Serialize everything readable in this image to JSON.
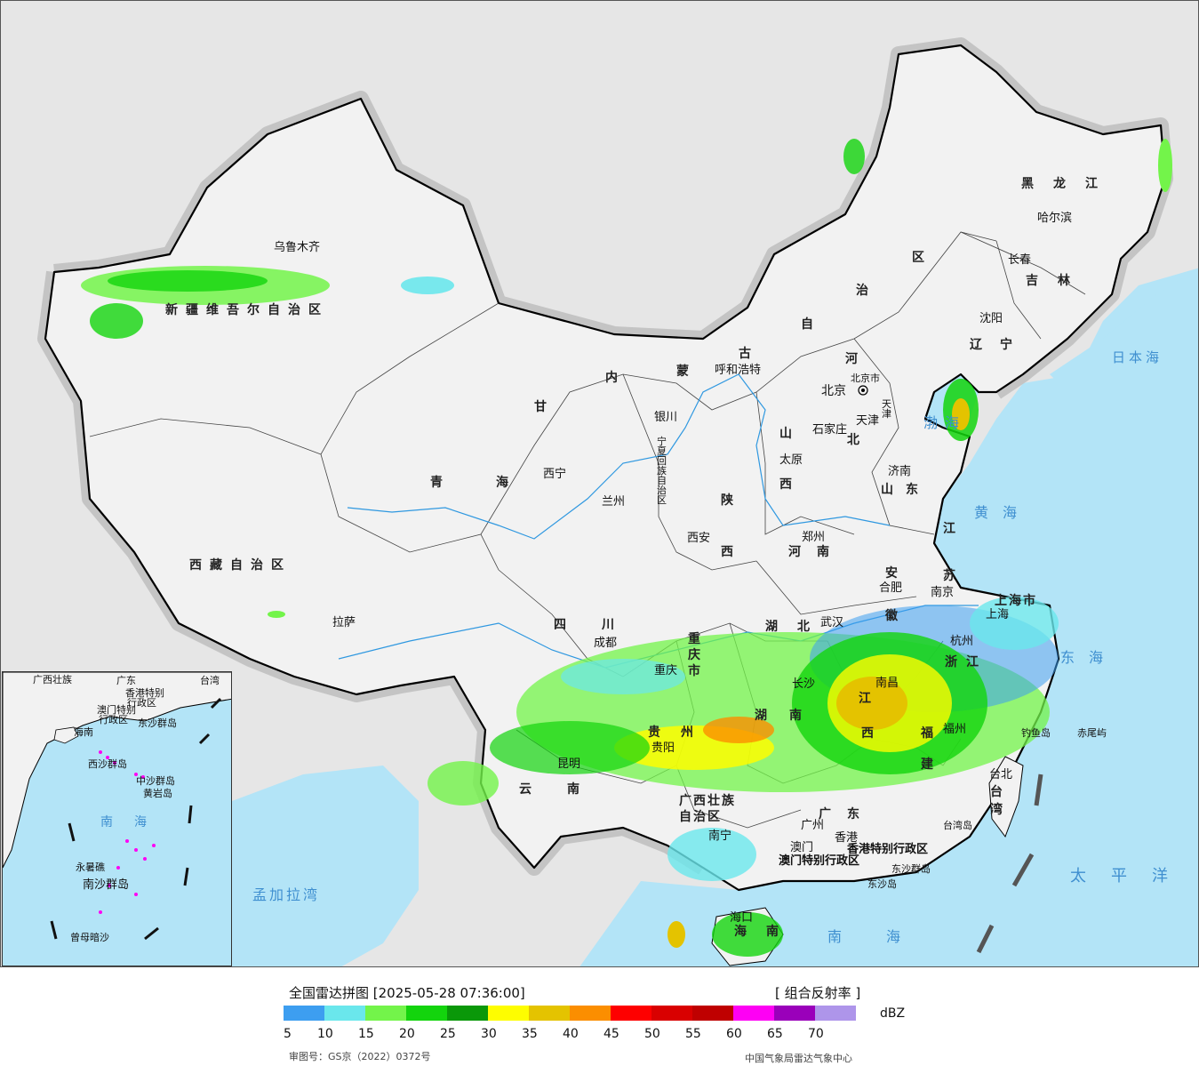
{
  "map": {
    "provinces": [
      {
        "id": "xinjiang",
        "label": "新疆维吾尔自治区"
      },
      {
        "id": "xizang",
        "label": "西藏自治区"
      },
      {
        "id": "qinghai",
        "label": "青海"
      },
      {
        "id": "gansu",
        "label": "甘"
      },
      {
        "id": "neimenggu-1",
        "label": "内"
      },
      {
        "id": "neimenggu-2",
        "label": "蒙"
      },
      {
        "id": "neimenggu-3",
        "label": "古"
      },
      {
        "id": "neimenggu-4",
        "label": "自"
      },
      {
        "id": "neimenggu-5",
        "label": "治"
      },
      {
        "id": "neimenggu-6",
        "label": "区"
      },
      {
        "id": "heilongjiang",
        "label": "黑龙江"
      },
      {
        "id": "jilin",
        "label": "吉林"
      },
      {
        "id": "liaoning",
        "label": "辽宁"
      },
      {
        "id": "hebei-1",
        "label": "河"
      },
      {
        "id": "hebei-2",
        "label": "北"
      },
      {
        "id": "shanxi-1",
        "label": "山"
      },
      {
        "id": "shanxi-2",
        "label": "西"
      },
      {
        "id": "shandong",
        "label": "山东"
      },
      {
        "id": "henan",
        "label": "河南"
      },
      {
        "id": "shaanxi-1",
        "label": "陕"
      },
      {
        "id": "shaanxi-2",
        "label": "西"
      },
      {
        "id": "ningxia",
        "label": "宁夏回族自治区"
      },
      {
        "id": "sichuan",
        "label": "四川"
      },
      {
        "id": "chongqing",
        "label": "重庆市"
      },
      {
        "id": "hubei",
        "label": "湖北"
      },
      {
        "id": "hunan-1",
        "label": "湖"
      },
      {
        "id": "hunan-2",
        "label": "南"
      },
      {
        "id": "anhui-1",
        "label": "安"
      },
      {
        "id": "anhui-2",
        "label": "徽"
      },
      {
        "id": "jiangsu-1",
        "label": "江"
      },
      {
        "id": "jiangsu-2",
        "label": "苏"
      },
      {
        "id": "shanghai",
        "label": "上海市"
      },
      {
        "id": "zhejiang",
        "label": "浙江"
      },
      {
        "id": "jiangxi-1",
        "label": "江"
      },
      {
        "id": "jiangxi-2",
        "label": "西"
      },
      {
        "id": "fujian-1",
        "label": "福"
      },
      {
        "id": "fujian-2",
        "label": "建"
      },
      {
        "id": "guizhou-1",
        "label": "贵"
      },
      {
        "id": "guizhou-2",
        "label": "州"
      },
      {
        "id": "yunnan",
        "label": "云南"
      },
      {
        "id": "guangxi-1",
        "label": "广西壮族"
      },
      {
        "id": "guangxi-2",
        "label": "自治区"
      },
      {
        "id": "guangdong",
        "label": "广东"
      },
      {
        "id": "taiwan",
        "label": "台湾"
      },
      {
        "id": "hainan",
        "label": "海南"
      },
      {
        "id": "beijing",
        "label": "北京市"
      },
      {
        "id": "tianjin",
        "label": "天津"
      },
      {
        "id": "hk",
        "label": "香港特别行政区"
      },
      {
        "id": "macao",
        "label": "澳门特别行政区"
      }
    ],
    "cities": [
      {
        "id": "urumqi",
        "label": "乌鲁木齐"
      },
      {
        "id": "lhasa",
        "label": "拉萨"
      },
      {
        "id": "xining",
        "label": "西宁"
      },
      {
        "id": "lanzhou",
        "label": "兰州"
      },
      {
        "id": "yinchuan",
        "label": "银川"
      },
      {
        "id": "hohhot",
        "label": "呼和浩特"
      },
      {
        "id": "beijing-city",
        "label": "北京"
      },
      {
        "id": "tianjin-city",
        "label": "天津"
      },
      {
        "id": "shijiazhuang",
        "label": "石家庄"
      },
      {
        "id": "taiyuan",
        "label": "太原"
      },
      {
        "id": "jinan",
        "label": "济南"
      },
      {
        "id": "zhengzhou",
        "label": "郑州"
      },
      {
        "id": "xian",
        "label": "西安"
      },
      {
        "id": "harbin",
        "label": "哈尔滨"
      },
      {
        "id": "changchun",
        "label": "长春"
      },
      {
        "id": "shenyang",
        "label": "沈阳"
      },
      {
        "id": "chengdu",
        "label": "成都"
      },
      {
        "id": "chongqing-city",
        "label": "重庆"
      },
      {
        "id": "wuhan",
        "label": "武汉"
      },
      {
        "id": "hefei",
        "label": "合肥"
      },
      {
        "id": "nanjing",
        "label": "南京"
      },
      {
        "id": "shanghai-city",
        "label": "上海"
      },
      {
        "id": "hangzhou",
        "label": "杭州"
      },
      {
        "id": "nanchang",
        "label": "南昌"
      },
      {
        "id": "changsha",
        "label": "长沙"
      },
      {
        "id": "guiyang",
        "label": "贵阳"
      },
      {
        "id": "kunming",
        "label": "昆明"
      },
      {
        "id": "nanning",
        "label": "南宁"
      },
      {
        "id": "guangzhou",
        "label": "广州"
      },
      {
        "id": "hongkong",
        "label": "香港"
      },
      {
        "id": "macau",
        "label": "澳门"
      },
      {
        "id": "fuzhou",
        "label": "福州"
      },
      {
        "id": "taibei",
        "label": "台北"
      },
      {
        "id": "haikou",
        "label": "海口"
      }
    ],
    "seas": [
      {
        "id": "bohai",
        "label": "渤海"
      },
      {
        "id": "huanghai",
        "label": "黄海"
      },
      {
        "id": "donghai",
        "label": "东海"
      },
      {
        "id": "nanhai",
        "label": "南海"
      },
      {
        "id": "taipingyang",
        "label": "太平洋"
      },
      {
        "id": "ribenhai",
        "label": "日本海"
      },
      {
        "id": "mengjiala",
        "label": "孟加拉湾"
      }
    ],
    "islands": [
      {
        "id": "diaoyu",
        "label": "钓鱼岛"
      },
      {
        "id": "chiwei",
        "label": "赤尾屿"
      },
      {
        "id": "taiwan-island",
        "label": "台湾岛"
      },
      {
        "id": "dongsha-islands",
        "label": "东沙群岛"
      },
      {
        "id": "dongsha-island",
        "label": "东沙岛"
      }
    ],
    "inset": {
      "labels": [
        {
          "id": "in-guangxi",
          "label": "广西壮族"
        },
        {
          "id": "in-guangdong",
          "label": "广东"
        },
        {
          "id": "in-taiwan",
          "label": "台湾"
        },
        {
          "id": "in-hk",
          "label": "香港特别"
        },
        {
          "id": "in-xingzhengqu",
          "label": "行政区"
        },
        {
          "id": "in-macao",
          "label": "澳门特别"
        },
        {
          "id": "in-macao2",
          "label": "行政区"
        },
        {
          "id": "in-dongsha",
          "label": "东沙群岛"
        },
        {
          "id": "in-hainan",
          "label": "海南"
        },
        {
          "id": "in-xisha",
          "label": "西沙群岛"
        },
        {
          "id": "in-zhongsha",
          "label": "中沙群岛"
        },
        {
          "id": "in-huangyan",
          "label": "黄岩岛"
        },
        {
          "id": "in-nanhai",
          "label": "南海"
        },
        {
          "id": "in-nansha",
          "label": "南沙群岛"
        },
        {
          "id": "in-yongshu",
          "label": "永暑礁"
        },
        {
          "id": "in-zengmu",
          "label": "曾母暗沙"
        }
      ]
    }
  },
  "legend": {
    "title": "全国雷达拼图 [2025-05-28 07:36:00]",
    "product": "[ 组合反射率 ]",
    "unit": "dBZ",
    "ticks": [
      "5",
      "10",
      "15",
      "20",
      "25",
      "30",
      "35",
      "40",
      "45",
      "50",
      "55",
      "60",
      "65",
      "70"
    ],
    "colors": [
      "#3d9ef0",
      "#6ae7ec",
      "#73f44a",
      "#13d40d",
      "#0a9809",
      "#fefd00",
      "#e4c300",
      "#fb8e00",
      "#fe0000",
      "#d90000",
      "#bf0000",
      "#fe00f4",
      "#9a00ba",
      "#ae95ea"
    ],
    "approval": "审图号：GS京（2022）0372号",
    "credit": "中国气象局雷达气象中心"
  }
}
